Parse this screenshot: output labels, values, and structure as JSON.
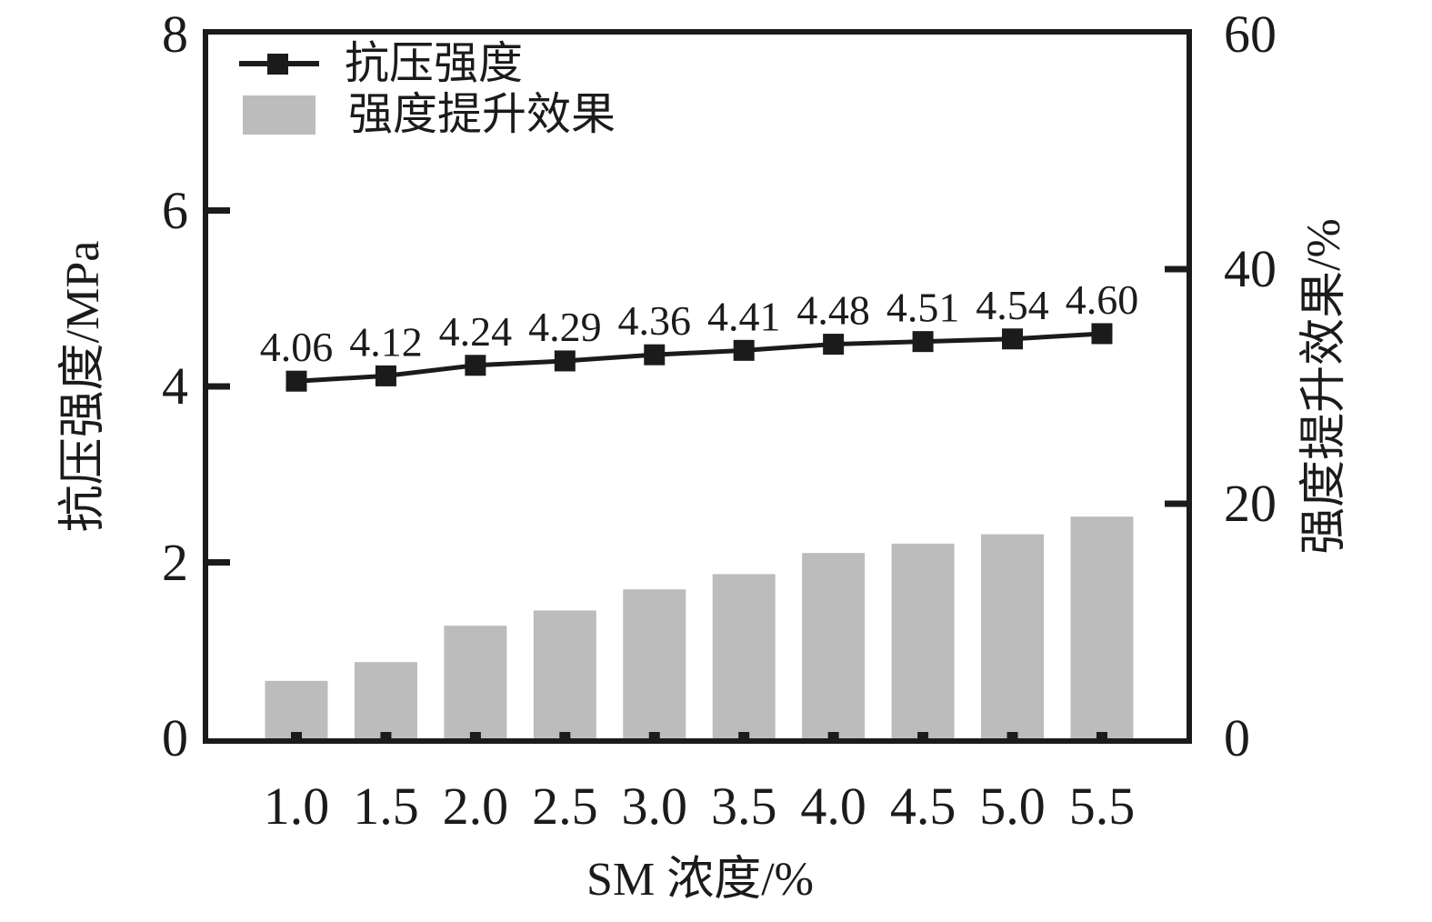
{
  "figure": {
    "background": "#ffffff",
    "frame_color": "#1b1b1b"
  },
  "legend": {
    "position": "top-left-inside",
    "items": [
      {
        "swatch": "line-with-square-marker",
        "label": "抗压强度"
      },
      {
        "swatch": "filled-bar",
        "label": "强度提升效果"
      }
    ]
  },
  "chart_data": {
    "type": "combo",
    "categories": [
      "1.0",
      "1.5",
      "2.0",
      "2.5",
      "3.0",
      "3.5",
      "4.0",
      "4.5",
      "5.0",
      "5.5"
    ],
    "series": [
      {
        "name": "抗压强度",
        "type": "line",
        "axis": "left",
        "marker": "square",
        "color": "#1b1b1b",
        "values": [
          4.06,
          4.12,
          4.24,
          4.29,
          4.36,
          4.41,
          4.48,
          4.51,
          4.54,
          4.6
        ],
        "point_labels": [
          "4.06",
          "4.12",
          "4.24",
          "4.29",
          "4.36",
          "4.41",
          "4.48",
          "4.51",
          "4.54",
          "4.60"
        ]
      },
      {
        "name": "强度提升效果",
        "type": "bar",
        "axis": "right",
        "color": "#bcbcbc",
        "values": [
          4.9,
          6.5,
          9.6,
          10.9,
          12.7,
          14.0,
          15.8,
          16.6,
          17.4,
          18.9
        ]
      }
    ],
    "xlabel": "SM 浓度/%",
    "ylabel_left": "抗压强度/MPa",
    "ylabel_right": "强度提升效果/%",
    "ylim_left": [
      0,
      8
    ],
    "ylim_right": [
      0,
      60
    ],
    "yticks_left": [
      0,
      2,
      4,
      6,
      8
    ],
    "ytick_labels_left": [
      "0",
      "2",
      "4",
      "6",
      "8"
    ],
    "yticks_right": [
      0,
      20,
      40,
      60
    ],
    "ytick_labels_right": [
      "0",
      "20",
      "40",
      "60"
    ],
    "grid": false,
    "legend_position": "top-left-inside"
  }
}
